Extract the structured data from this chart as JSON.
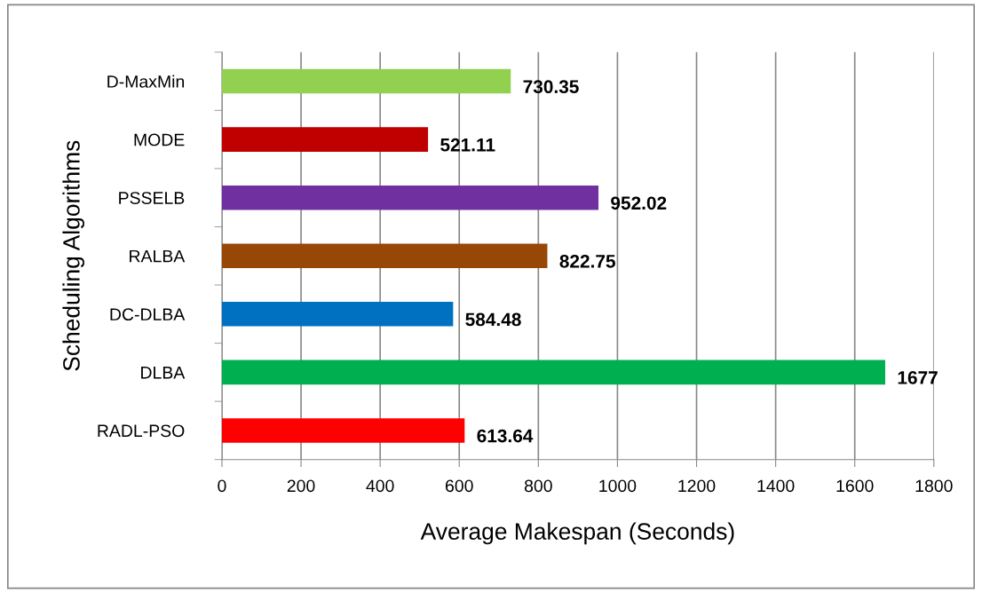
{
  "chart_data": {
    "type": "bar",
    "orientation": "horizontal",
    "xlabel": "Average Makespan (Seconds)",
    "ylabel": "Scheduling Algorithms",
    "categories": [
      "D-MaxMin",
      "MODE",
      "PSSELB",
      "RALBA",
      "DC-DLBA",
      "DLBA",
      "RADL-PSO"
    ],
    "values": [
      730.35,
      521.11,
      952.02,
      822.75,
      584.48,
      1677,
      613.64
    ],
    "colors": [
      "#92d050",
      "#c00000",
      "#7030a0",
      "#974706",
      "#0070c0",
      "#00b050",
      "#ff0000"
    ],
    "xlim": [
      0,
      1800
    ],
    "xticks": [
      0,
      200,
      400,
      600,
      800,
      1000,
      1200,
      1400,
      1600,
      1800
    ],
    "grid": "x",
    "data_labels": true,
    "legend": false
  }
}
